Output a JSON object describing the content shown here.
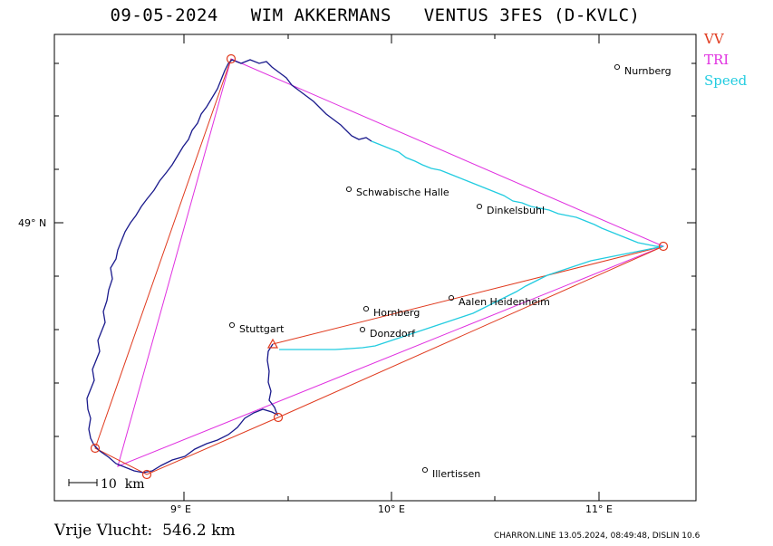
{
  "title": "09-05-2024   WIM AKKERMANS   VENTUS 3FES (D-KVLC)",
  "legend": [
    {
      "label": "VV",
      "color": "#e03a1e"
    },
    {
      "label": "TRI",
      "color": "#e030e0"
    },
    {
      "label": "Speed",
      "color": "#22cce0"
    }
  ],
  "axes": {
    "x_ticks": [
      "9° E",
      "10° E",
      "11° E"
    ],
    "y_ticks": [
      "49° N"
    ]
  },
  "scale_bar": "10  km",
  "cities": [
    {
      "name": "Nurnberg"
    },
    {
      "name": "Schwabische Halle"
    },
    {
      "name": "Dinkelsbuhl"
    },
    {
      "name": "Hornberg"
    },
    {
      "name": "Aalen Heidenheim"
    },
    {
      "name": "Stuttgart"
    },
    {
      "name": "Donzdorf"
    },
    {
      "name": "Illertissen"
    }
  ],
  "footer": {
    "distance": "Vrije Vlucht:  546.2 km",
    "credit": "CHARRON.LINE 13.05.2024, 08:49:48, DISLIN 10.6"
  },
  "colors": {
    "track": "#1a1a8c",
    "speed": "#22cce0",
    "vv": "#e03a1e",
    "tri": "#e030e0"
  }
}
